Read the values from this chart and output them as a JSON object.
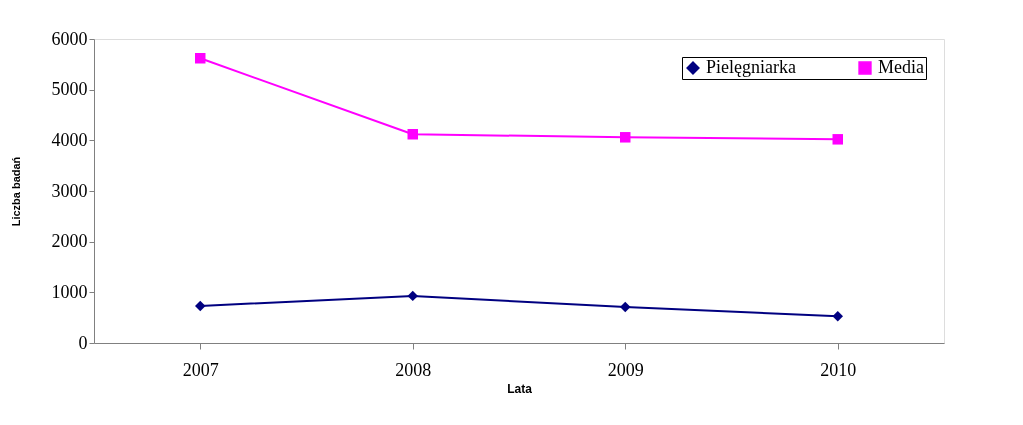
{
  "chart_data": {
    "type": "line",
    "xlabel": "Lata",
    "ylabel": "Liczba badań",
    "categories": [
      "2007",
      "2008",
      "2009",
      "2010"
    ],
    "series": [
      {
        "name": "Pielęgniarka",
        "color": "#000080",
        "marker": "diamond",
        "values": [
          730,
          930,
          710,
          530
        ]
      },
      {
        "name": "Media",
        "color": "#ff00ff",
        "marker": "square",
        "values": [
          5620,
          4120,
          4060,
          4020
        ]
      }
    ],
    "ylim": [
      0,
      6000
    ],
    "yticks": [
      0,
      1000,
      2000,
      3000,
      4000,
      5000,
      6000
    ],
    "grid": false,
    "legend": "top right"
  }
}
